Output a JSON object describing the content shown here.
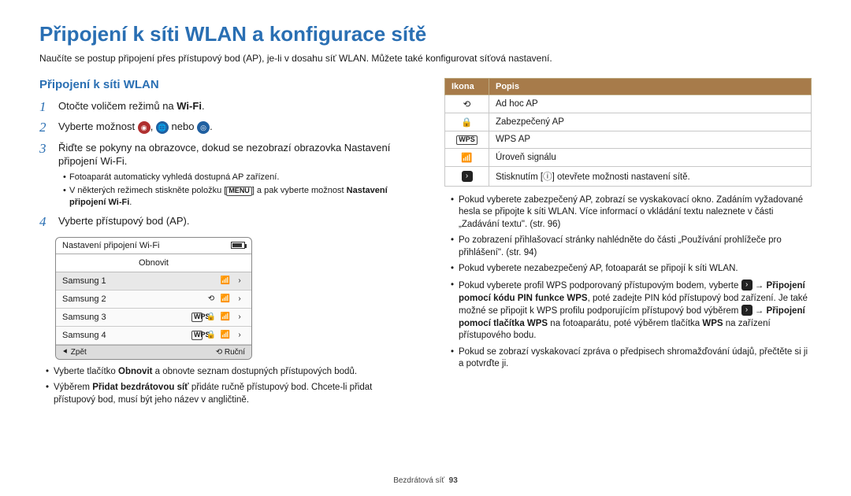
{
  "page": {
    "title": "Připojení k síti WLAN a konfigurace sítě",
    "intro": "Naučíte se postup připojení přes přístupový bod (AP), je-li v dosahu síť WLAN. Můžete také konfigurovat síťová nastavení.",
    "footer_section": "Bezdrátová síť",
    "footer_page": "93"
  },
  "left": {
    "heading": "Připojení k síti WLAN",
    "step1": "Otočte voličem režimů na ",
    "step1_suffix": "Wi-Fi",
    "step2_a": "Vyberte možnost ",
    "step2_b": " nebo ",
    "step3_a": "Řiďte se pokyny na obrazovce, dokud se nezobrazí obrazovka Nastavení připojení Wi-Fi.",
    "step3_b1": "Fotoaparát automaticky vyhledá dostupná AP zařízení.",
    "step3_b2_a": "V některých režimech stiskněte položku [",
    "step3_b2_menu": "MENU",
    "step3_b2_b": "] a pak vyberte možnost ",
    "step3_b2_bold": "Nastavení připojení Wi-Fi",
    "step4": "Vyberte přístupový bod (AP).",
    "bul1_a": "Vyberte tlačítko ",
    "bul1_b": "Obnovit",
    "bul1_c": " a obnovte seznam dostupných přístupových bodů.",
    "bul2_a": "Výběrem ",
    "bul2_b": "Přidat bezdrátovou síť",
    "bul2_c": " přidáte ručně přístupový bod. Chcete-li přidat přístupový bod, musí být jeho název v angličtině."
  },
  "wifi_panel": {
    "title": "Nastavení připojení Wi-Fi",
    "refresh": "Obnovit",
    "rows": [
      "Samsung 1",
      "Samsung 2",
      "Samsung 3",
      "Samsung 4"
    ],
    "back": "Zpět",
    "manual": "Ruční"
  },
  "table": {
    "h1": "Ikona",
    "h2": "Popis",
    "r1": "Ad hoc AP",
    "r2": "Zabezpečený AP",
    "r3": "WPS AP",
    "r4": "Úroveň signálu",
    "r5_a": "Stisknutím [",
    "r5_b": "] otevřete možnosti nastavení sítě."
  },
  "right_bullets": {
    "b1": "Pokud vyberete zabezpečený AP, zobrazí se vyskakovací okno. Zadáním vyžadované hesla se připojte k síti WLAN. Více informací o vkládání textu naleznete v části „Zadávání textu\". (str. 96)",
    "b2": "Po zobrazení přihlašovací stránky nahlédněte do části „Používání prohlížeče pro přihlášení\". (str. 94)",
    "b3": "Pokud vyberete nezabezpečený AP, fotoaparát se připojí k síti WLAN.",
    "b4_a": "Pokud vyberete profil WPS podporovaný přístupovým bodem, vyberte ",
    "b4_b": " → ",
    "b4_c": "Připojení pomocí kódu PIN funkce WPS",
    "b4_d": ", poté zadejte PIN kód přístupový bod zařízení. Je také možné se připojit k WPS profilu podporujícím přístupový bod výběrem ",
    "b4_e": " → ",
    "b4_f": "Připojení pomocí tlačítka WPS",
    "b4_g": " na fotoaparátu, poté výběrem tlačítka ",
    "b4_h": "WPS",
    "b4_i": " na zařízení přístupového bodu.",
    "b5": "Pokud se zobrazí vyskakovací zpráva o předpisech shromažďování údajů, přečtěte si ji a potvrďte ji."
  }
}
